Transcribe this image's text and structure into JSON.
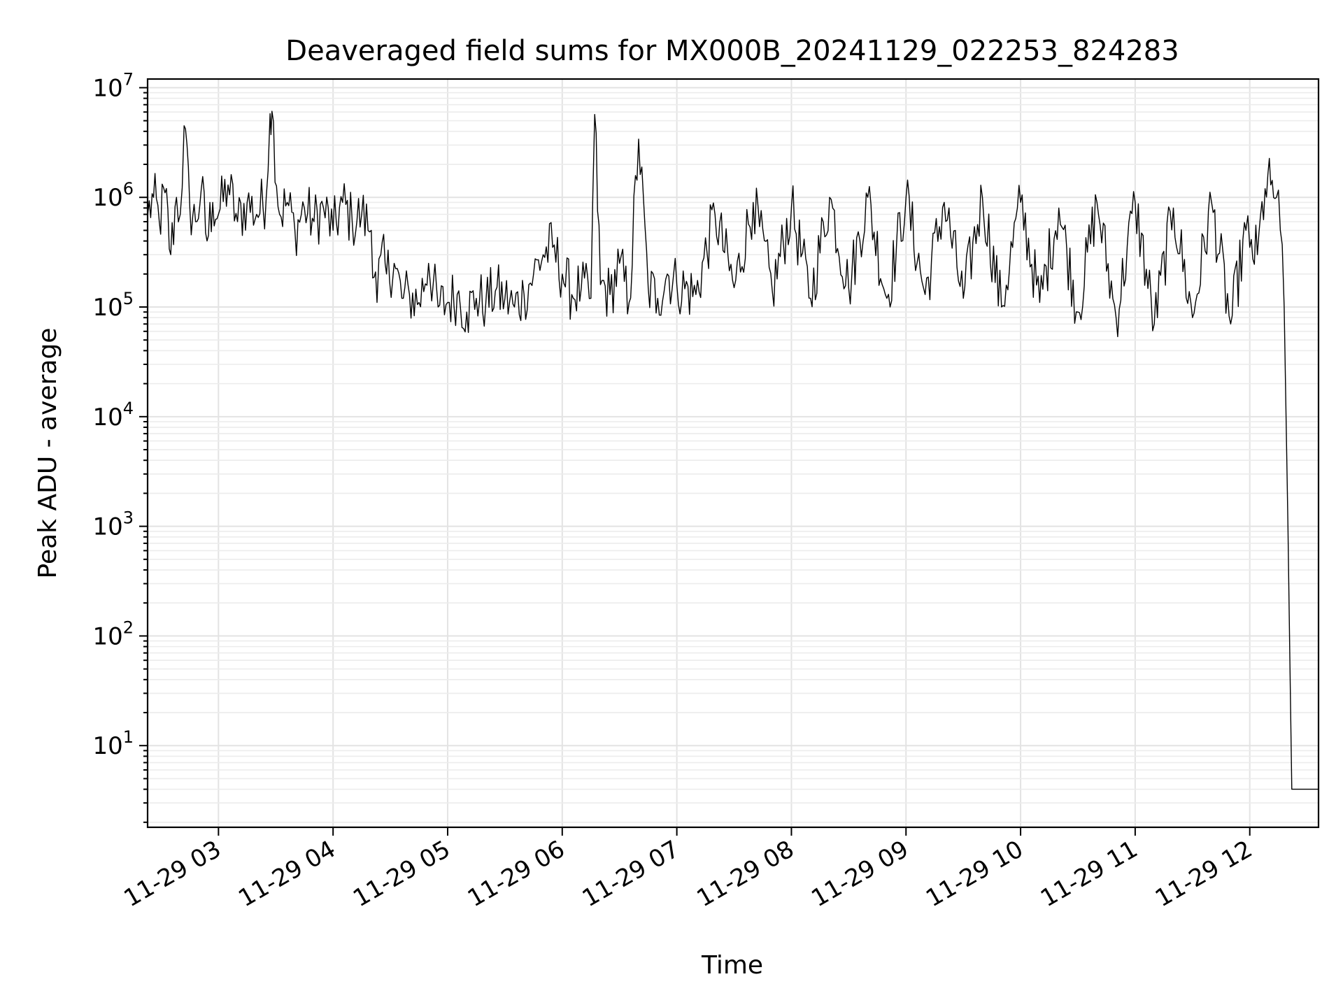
{
  "chart_data": {
    "type": "line",
    "title": "Deaveraged field sums for MX000B_20241129_022253_824283",
    "xlabel": "Time",
    "ylabel": "Peak ADU - average",
    "xscale": "time",
    "yscale": "log",
    "grid": true,
    "xlim": [
      "2024-11-29T02:22:53",
      "2024-11-29T12:36:00"
    ],
    "ylim": [
      1.8,
      12000000
    ],
    "x_ticks": [
      "11-29 03",
      "11-29 04",
      "11-29 05",
      "11-29 06",
      "11-29 07",
      "11-29 08",
      "11-29 09",
      "11-29 10",
      "11-29 11",
      "11-29 12"
    ],
    "y_ticks": [
      {
        "base": "10",
        "exp": "1"
      },
      {
        "base": "10",
        "exp": "2"
      },
      {
        "base": "10",
        "exp": "3"
      },
      {
        "base": "10",
        "exp": "4"
      },
      {
        "base": "10",
        "exp": "5"
      },
      {
        "base": "10",
        "exp": "6"
      },
      {
        "base": "10",
        "exp": "7"
      }
    ],
    "series": [
      {
        "color": "#000000",
        "x": [
          "2024-11-29T02:23",
          "2024-11-29T02:26",
          "2024-11-29T02:29",
          "2024-11-29T02:32",
          "2024-11-29T02:35",
          "2024-11-29T02:38",
          "2024-11-29T02:40",
          "2024-11-29T02:42",
          "2024-11-29T02:45",
          "2024-11-29T02:48",
          "2024-11-29T02:51",
          "2024-11-29T02:54",
          "2024-11-29T02:57",
          "2024-11-29T03:00",
          "2024-11-29T03:05",
          "2024-11-29T03:10",
          "2024-11-29T03:15",
          "2024-11-29T03:20",
          "2024-11-29T03:25",
          "2024-11-29T03:27",
          "2024-11-29T03:28",
          "2024-11-29T03:32",
          "2024-11-29T03:36",
          "2024-11-29T03:40",
          "2024-11-29T03:45",
          "2024-11-29T03:50",
          "2024-11-29T03:55",
          "2024-11-29T04:00",
          "2024-11-29T04:05",
          "2024-11-29T04:10",
          "2024-11-29T04:15",
          "2024-11-29T04:20",
          "2024-11-29T04:23",
          "2024-11-29T04:25",
          "2024-11-29T04:28",
          "2024-11-29T04:32",
          "2024-11-29T04:36",
          "2024-11-29T04:40",
          "2024-11-29T04:45",
          "2024-11-29T04:50",
          "2024-11-29T04:55",
          "2024-11-29T05:00",
          "2024-11-29T05:05",
          "2024-11-29T05:10",
          "2024-11-29T05:15",
          "2024-11-29T05:20",
          "2024-11-29T05:25",
          "2024-11-29T05:30",
          "2024-11-29T05:35",
          "2024-11-29T05:40",
          "2024-11-29T05:45",
          "2024-11-29T05:50",
          "2024-11-29T05:55",
          "2024-11-29T06:00",
          "2024-11-29T06:05",
          "2024-11-29T06:10",
          "2024-11-29T06:15",
          "2024-11-29T06:17",
          "2024-11-29T06:20",
          "2024-11-29T06:25",
          "2024-11-29T06:30",
          "2024-11-29T06:35",
          "2024-11-29T06:40",
          "2024-11-29T06:45",
          "2024-11-29T06:50",
          "2024-11-29T06:55",
          "2024-11-29T07:00",
          "2024-11-29T07:10",
          "2024-11-29T07:20",
          "2024-11-29T07:30",
          "2024-11-29T07:40",
          "2024-11-29T07:50",
          "2024-11-29T08:00",
          "2024-11-29T08:10",
          "2024-11-29T08:20",
          "2024-11-29T08:30",
          "2024-11-29T08:40",
          "2024-11-29T08:50",
          "2024-11-29T09:00",
          "2024-11-29T09:10",
          "2024-11-29T09:20",
          "2024-11-29T09:30",
          "2024-11-29T09:40",
          "2024-11-29T09:50",
          "2024-11-29T10:00",
          "2024-11-29T10:10",
          "2024-11-29T10:20",
          "2024-11-29T10:30",
          "2024-11-29T10:40",
          "2024-11-29T10:50",
          "2024-11-29T11:00",
          "2024-11-29T11:10",
          "2024-11-29T11:20",
          "2024-11-29T11:30",
          "2024-11-29T11:40",
          "2024-11-29T11:50",
          "2024-11-29T11:58",
          "2024-11-29T12:00",
          "2024-11-29T12:04",
          "2024-11-29T12:08",
          "2024-11-29T12:11",
          "2024-11-29T12:14",
          "2024-11-29T12:16",
          "2024-11-29T12:18",
          "2024-11-29T12:20",
          "2024-11-29T12:22",
          "2024-11-29T12:24",
          "2024-11-29T12:25",
          "2024-11-29T12:27",
          "2024-11-29T12:30",
          "2024-11-29T12:33",
          "2024-11-29T12:36"
        ],
        "y": [
          700000,
          1000000,
          600000,
          1100000,
          300000,
          1000000,
          700000,
          4500000,
          800000,
          600000,
          1200000,
          400000,
          900000,
          700000,
          1300000,
          600000,
          900000,
          700000,
          1000000,
          5800000,
          6100000,
          700000,
          900000,
          500000,
          800000,
          600000,
          800000,
          500000,
          900000,
          600000,
          700000,
          500000,
          110000,
          300000,
          200000,
          250000,
          120000,
          130000,
          110000,
          250000,
          100000,
          110000,
          130000,
          90000,
          120000,
          110000,
          140000,
          120000,
          100000,
          130000,
          200000,
          300000,
          350000,
          200000,
          130000,
          150000,
          120000,
          5700000,
          160000,
          130000,
          250000,
          110000,
          3400000,
          150000,
          120000,
          200000,
          160000,
          130000,
          700000,
          150000,
          900000,
          140000,
          800000,
          120000,
          1000000,
          150000,
          1000000,
          120000,
          1000000,
          130000,
          900000,
          120000,
          1000000,
          100000,
          900000,
          110000,
          800000,
          90000,
          900000,
          80000,
          900000,
          70000,
          800000,
          80000,
          900000,
          70000,
          500000,
          350000,
          300000,
          1200000,
          1300000,
          1000000,
          500000,
          100000,
          1000,
          4,
          4,
          4,
          4,
          4,
          4,
          4
        ]
      }
    ]
  }
}
